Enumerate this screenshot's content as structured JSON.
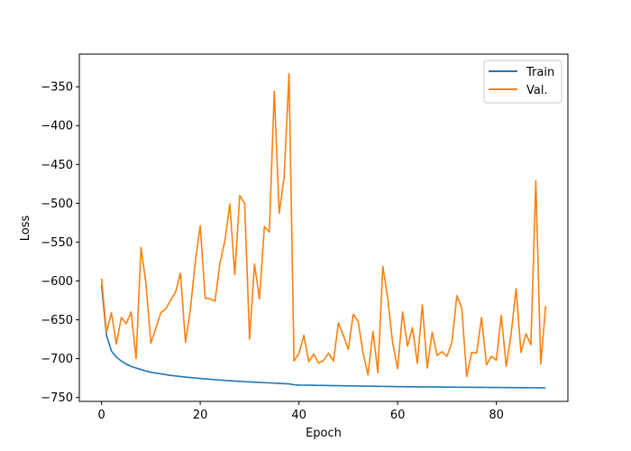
{
  "chart_data": {
    "type": "line",
    "title": "",
    "xlabel": "Epoch",
    "ylabel": "Loss",
    "xlim": [
      -4.5,
      94.5
    ],
    "ylim": [
      -755,
      -308
    ],
    "xticks": [
      0,
      20,
      40,
      60,
      80
    ],
    "yticks": [
      -750,
      -700,
      -650,
      -600,
      -550,
      -500,
      -450,
      -400,
      -350
    ],
    "xtick_labels": [
      "0",
      "20",
      "40",
      "60",
      "80"
    ],
    "ytick_labels": [
      "−750",
      "−700",
      "−650",
      "−600",
      "−550",
      "−500",
      "−450",
      "−400",
      "−350"
    ],
    "grid": false,
    "legend_position": "top-right",
    "series": [
      {
        "name": "Train",
        "color": "#1f77b4",
        "x": [
          0,
          1,
          2,
          3,
          4,
          5,
          6,
          7,
          8,
          9,
          10,
          11,
          12,
          13,
          14,
          15,
          16,
          17,
          18,
          19,
          20,
          21,
          22,
          23,
          24,
          25,
          26,
          27,
          28,
          29,
          30,
          31,
          32,
          33,
          34,
          35,
          36,
          37,
          38,
          39,
          40,
          41,
          42,
          43,
          44,
          45,
          46,
          47,
          48,
          49,
          50,
          51,
          52,
          53,
          54,
          55,
          56,
          57,
          58,
          59,
          60,
          61,
          62,
          63,
          64,
          65,
          66,
          67,
          68,
          69,
          70,
          71,
          72,
          73,
          74,
          75,
          76,
          77,
          78,
          79,
          80,
          81,
          82,
          83,
          84,
          85,
          86,
          87,
          88,
          89,
          90
        ],
        "values": [
          -605,
          -670,
          -690,
          -698,
          -703,
          -707,
          -710,
          -712,
          -714,
          -716,
          -717.5,
          -718.5,
          -719.5,
          -720.5,
          -721.5,
          -722.3,
          -723,
          -723.7,
          -724.3,
          -724.9,
          -725.5,
          -726,
          -726.5,
          -727,
          -727.5,
          -728,
          -728.4,
          -728.8,
          -729.2,
          -729.6,
          -730,
          -730.3,
          -730.6,
          -730.9,
          -731.2,
          -731.5,
          -731.8,
          -732.1,
          -732.5,
          -733.6,
          -734,
          -734.1,
          -734.2,
          -734.3,
          -734.4,
          -734.5,
          -734.6,
          -734.7,
          -734.8,
          -734.9,
          -735,
          -735.1,
          -735.2,
          -735.3,
          -735.4,
          -735.5,
          -735.6,
          -735.7,
          -735.8,
          -735.9,
          -736,
          -736.1,
          -736.2,
          -736.25,
          -736.3,
          -736.35,
          -736.4,
          -736.45,
          -736.5,
          -736.55,
          -736.6,
          -736.65,
          -736.7,
          -736.75,
          -736.8,
          -736.85,
          -736.9,
          -736.95,
          -737,
          -737.05,
          -737.1,
          -737.15,
          -737.2,
          -737.25,
          -737.3,
          -737.35,
          -737.4,
          -737.45,
          -737.5,
          -737.55,
          -737.6
        ]
      },
      {
        "name": "Val.",
        "color": "#ff7f0e",
        "x": [
          0,
          1,
          2,
          3,
          4,
          5,
          6,
          7,
          8,
          9,
          10,
          11,
          12,
          13,
          14,
          15,
          16,
          17,
          18,
          19,
          20,
          21,
          22,
          23,
          24,
          25,
          26,
          27,
          28,
          29,
          30,
          31,
          32,
          33,
          34,
          35,
          36,
          37,
          38,
          39,
          40,
          41,
          42,
          43,
          44,
          45,
          46,
          47,
          48,
          49,
          50,
          51,
          52,
          53,
          54,
          55,
          56,
          57,
          58,
          59,
          60,
          61,
          62,
          63,
          64,
          65,
          66,
          67,
          68,
          69,
          70,
          71,
          72,
          73,
          74,
          75,
          76,
          77,
          78,
          79,
          80,
          81,
          82,
          83,
          84,
          85,
          86,
          87,
          88,
          89,
          90
        ],
        "values": [
          -597,
          -666,
          -641,
          -681,
          -647,
          -655,
          -640,
          -700,
          -557,
          -603,
          -680,
          -661,
          -641,
          -636,
          -625,
          -614,
          -590,
          -679,
          -637,
          -575,
          -529,
          -622,
          -623,
          -626,
          -577,
          -548,
          -501,
          -592,
          -490,
          -500,
          -675,
          -578,
          -623,
          -530,
          -537,
          -356,
          -513,
          -466,
          -333,
          -703,
          -693,
          -670,
          -704,
          -694,
          -706,
          -702,
          -693,
          -703,
          -654,
          -670,
          -688,
          -643,
          -652,
          -693,
          -721,
          -665,
          -718,
          -581,
          -623,
          -680,
          -713,
          -640,
          -684,
          -660,
          -706,
          -631,
          -712,
          -666,
          -696,
          -691,
          -697,
          -679,
          -619,
          -635,
          -723,
          -692,
          -693,
          -647,
          -708,
          -697,
          -702,
          -644,
          -710,
          -668,
          -610,
          -692,
          -668,
          -682,
          -471,
          -707,
          -632
        ]
      }
    ]
  }
}
